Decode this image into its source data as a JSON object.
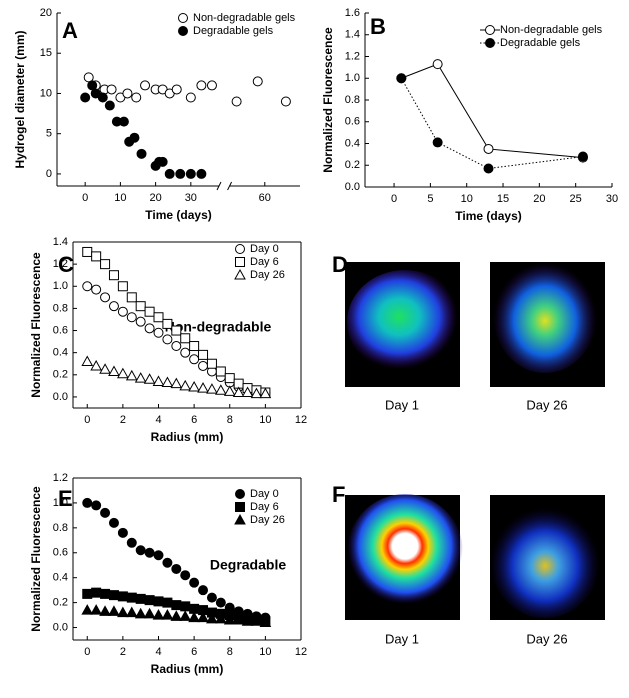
{
  "chart_data": [
    {
      "type": "scatter",
      "panel": "A",
      "xlabel": "Time (days)",
      "ylabel": "Hydrogel diameter (mm)",
      "xlim": [
        -8,
        70
      ],
      "xbreak": [
        38,
        50
      ],
      "ylim": [
        -1.5,
        20
      ],
      "xticks": [
        0,
        10,
        20,
        30,
        60
      ],
      "yticks": [
        0,
        5,
        10,
        15,
        20
      ],
      "legend": "upper right",
      "frame": "axes",
      "series": [
        {
          "name": "Non-degradable gels",
          "marker": "circle",
          "filled": false,
          "color": "#000000",
          "x": [
            1,
            3,
            5.5,
            7.5,
            10,
            12,
            14.5,
            17,
            20,
            22,
            24,
            26,
            30,
            33,
            36,
            52,
            58,
            66
          ],
          "values": [
            12,
            11,
            10.5,
            10.5,
            9.5,
            10,
            9.5,
            11,
            10.5,
            10.5,
            10,
            10.5,
            9.5,
            11,
            11,
            9,
            11.5,
            9
          ]
        },
        {
          "name": "Degradable gels",
          "marker": "circle",
          "filled": true,
          "color": "#000000",
          "x": [
            0,
            2,
            3,
            5,
            7,
            9,
            11,
            12.5,
            14,
            16,
            20,
            21,
            22,
            24,
            27,
            30,
            33
          ],
          "values": [
            9.5,
            11,
            10,
            9.5,
            8.5,
            6.5,
            6.5,
            4,
            4.5,
            2.5,
            1,
            1.5,
            1.5,
            0,
            0,
            0,
            0
          ]
        }
      ]
    },
    {
      "type": "line",
      "panel": "B",
      "xlabel": "Time (days)",
      "ylabel": "Normalized Fluorescence",
      "xlim": [
        -4,
        30
      ],
      "ylim": [
        0,
        1.6
      ],
      "xticks": [
        0,
        5,
        10,
        15,
        20,
        25,
        30
      ],
      "yticks": [
        {
          "value": 0,
          "label": "0.0"
        },
        {
          "value": 0.2,
          "label": "0.2"
        },
        {
          "value": 0.4,
          "label": "0.4"
        },
        {
          "value": 0.6,
          "label": "0.6"
        },
        {
          "value": 0.8,
          "label": "0.8"
        },
        {
          "value": 1,
          "label": "1.0"
        },
        {
          "value": 1.2,
          "label": "1.2"
        },
        {
          "value": 1.4,
          "label": "1.4"
        },
        {
          "value": 1.6,
          "label": "1.6"
        }
      ],
      "legend": "upper right",
      "frame": "axes",
      "series": [
        {
          "name": "Non-degradable gels",
          "marker": "circle",
          "filled": false,
          "color": "#000000",
          "line": "solid",
          "x": [
            1,
            6,
            13,
            26
          ],
          "values": [
            1.0,
            1.13,
            0.35,
            0.27
          ]
        },
        {
          "name": "Degradable gels",
          "marker": "circle",
          "filled": true,
          "color": "#000000",
          "line": "dotted",
          "x": [
            1,
            6,
            13,
            26
          ],
          "values": [
            1.0,
            0.41,
            0.17,
            0.28
          ]
        }
      ]
    },
    {
      "type": "scatter",
      "panel": "C",
      "xlabel": "Radius (mm)",
      "ylabel": "Normalized Fluorescence",
      "annotation": "Non-degradable",
      "xlim": [
        -0.8,
        12
      ],
      "ylim": [
        -0.1,
        1.4
      ],
      "xticks": [
        0,
        2,
        4,
        6,
        8,
        10,
        12
      ],
      "yticks": [
        {
          "value": 0,
          "label": "0.0"
        },
        {
          "value": 0.2,
          "label": "0.2"
        },
        {
          "value": 0.4,
          "label": "0.4"
        },
        {
          "value": 0.6,
          "label": "0.6"
        },
        {
          "value": 0.8,
          "label": "0.8"
        },
        {
          "value": 1,
          "label": "1.0"
        },
        {
          "value": 1.2,
          "label": "1.2"
        },
        {
          "value": 1.4,
          "label": "1.4"
        }
      ],
      "legend": "upper right",
      "frame": "box",
      "x": [
        0,
        0.5,
        1,
        1.5,
        2,
        2.5,
        3,
        3.5,
        4,
        4.5,
        5,
        5.5,
        6,
        6.5,
        7,
        7.5,
        8,
        8.5,
        9,
        9.5,
        10
      ],
      "series": [
        {
          "name": "Day 0",
          "marker": "circle",
          "filled": false,
          "color": "#000000",
          "values": [
            1.0,
            0.97,
            0.9,
            0.82,
            0.77,
            0.72,
            0.68,
            0.62,
            0.58,
            0.52,
            0.46,
            0.4,
            0.34,
            0.28,
            0.23,
            0.18,
            0.13,
            0.09,
            0.07,
            0.05,
            0.04
          ]
        },
        {
          "name": "Day 6",
          "marker": "square",
          "filled": false,
          "color": "#000000",
          "values": [
            1.31,
            1.27,
            1.2,
            1.1,
            1.0,
            0.9,
            0.82,
            0.77,
            0.72,
            0.66,
            0.6,
            0.53,
            0.46,
            0.38,
            0.3,
            0.23,
            0.17,
            0.12,
            0.08,
            0.06,
            0.04
          ]
        },
        {
          "name": "Day 26",
          "marker": "triangle",
          "filled": false,
          "color": "#000000",
          "values": [
            0.32,
            0.28,
            0.25,
            0.23,
            0.21,
            0.19,
            0.17,
            0.16,
            0.14,
            0.13,
            0.12,
            0.1,
            0.09,
            0.08,
            0.07,
            0.06,
            0.05,
            0.04,
            0.04,
            0.03,
            0.03
          ]
        }
      ]
    },
    {
      "type": "scatter",
      "panel": "E",
      "xlabel": "Radius (mm)",
      "ylabel": "Normalized Fluorescence",
      "annotation": "Degradable",
      "xlim": [
        -0.8,
        12
      ],
      "ylim": [
        -0.1,
        1.2
      ],
      "xticks": [
        0,
        2,
        4,
        6,
        8,
        10,
        12
      ],
      "yticks": [
        {
          "value": 0,
          "label": "0.0"
        },
        {
          "value": 0.2,
          "label": "0.2"
        },
        {
          "value": 0.4,
          "label": "0.4"
        },
        {
          "value": 0.6,
          "label": "0.6"
        },
        {
          "value": 0.8,
          "label": "0.8"
        },
        {
          "value": 1,
          "label": "1.0"
        },
        {
          "value": 1.2,
          "label": "1.2"
        }
      ],
      "legend": "upper right",
      "frame": "box",
      "x": [
        0,
        0.5,
        1,
        1.5,
        2,
        2.5,
        3,
        3.5,
        4,
        4.5,
        5,
        5.5,
        6,
        6.5,
        7,
        7.5,
        8,
        8.5,
        9,
        9.5,
        10
      ],
      "series": [
        {
          "name": "Day 0",
          "marker": "circle",
          "filled": true,
          "color": "#000000",
          "values": [
            1.0,
            0.98,
            0.92,
            0.84,
            0.76,
            0.68,
            0.62,
            0.6,
            0.58,
            0.52,
            0.47,
            0.42,
            0.36,
            0.3,
            0.24,
            0.2,
            0.16,
            0.13,
            0.11,
            0.09,
            0.08
          ]
        },
        {
          "name": "Day 6",
          "marker": "square",
          "filled": true,
          "color": "#000000",
          "values": [
            0.27,
            0.28,
            0.27,
            0.26,
            0.25,
            0.24,
            0.23,
            0.22,
            0.21,
            0.2,
            0.18,
            0.17,
            0.15,
            0.14,
            0.12,
            0.11,
            0.1,
            0.08,
            0.07,
            0.06,
            0.05
          ]
        },
        {
          "name": "Day 26",
          "marker": "triangle",
          "filled": true,
          "color": "#000000",
          "values": [
            0.14,
            0.14,
            0.13,
            0.13,
            0.12,
            0.12,
            0.11,
            0.11,
            0.1,
            0.1,
            0.09,
            0.09,
            0.08,
            0.08,
            0.07,
            0.07,
            0.06,
            0.06,
            0.05,
            0.05,
            0.04
          ]
        }
      ]
    }
  ],
  "images": [
    {
      "panel": "D",
      "captions": [
        "Day 1",
        "Day 26"
      ]
    },
    {
      "panel": "F",
      "captions": [
        "Day 1",
        "Day 26"
      ]
    }
  ]
}
